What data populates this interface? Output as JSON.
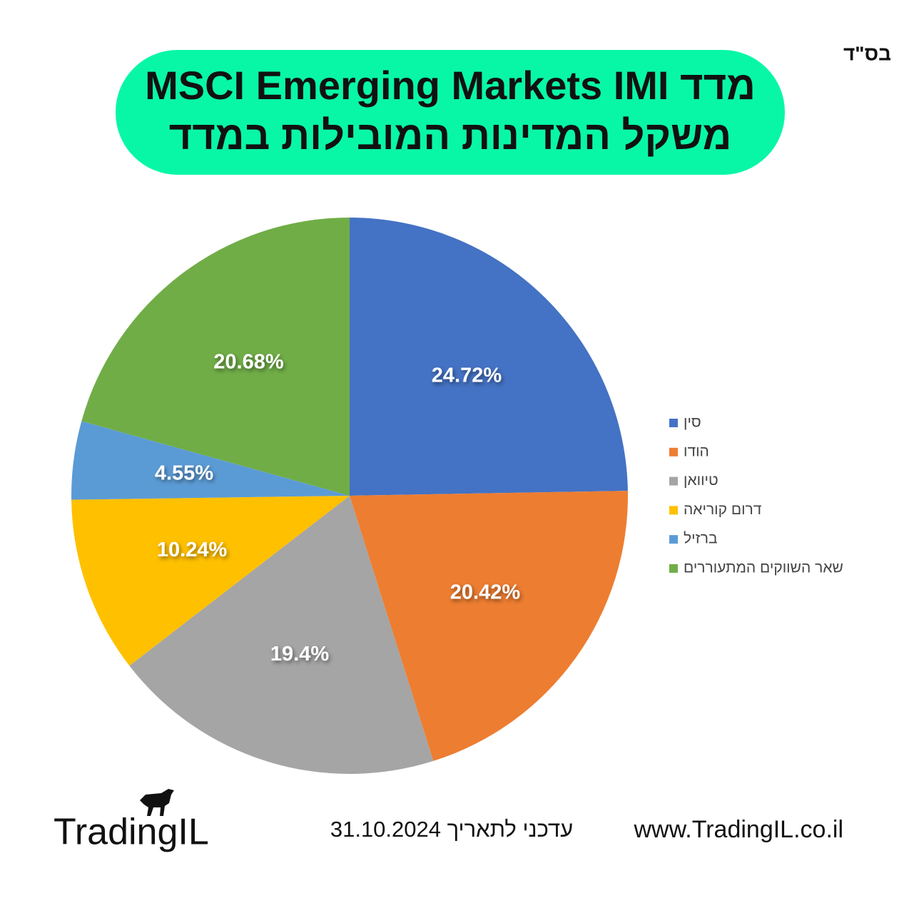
{
  "header": {
    "blessing": "בס\"ד"
  },
  "chart_data": {
    "type": "pie",
    "title": "מדד MSCI Emerging Markets IMI",
    "subtitle": "משקל המדינות המובילות במדד",
    "categories": [
      "סין",
      "הודו",
      "טיוואן",
      "דרום קוריאה",
      "ברזיל",
      "שאר השווקים המתעוררים"
    ],
    "values": [
      24.72,
      20.42,
      19.4,
      10.24,
      4.55,
      20.68
    ],
    "value_labels": [
      "24.72%",
      "20.42%",
      "19.4%",
      "10.24%",
      "4.55%",
      "20.68%"
    ],
    "colors": [
      "#4472c4",
      "#ed7d31",
      "#a5a5a5",
      "#ffc000",
      "#5b9bd5",
      "#70ad47"
    ],
    "legend": "right"
  },
  "footer": {
    "logo": "TradingIL",
    "updated": "עדכני לתאריך 31.10.2024",
    "website": "www.TradingIL.co.il"
  }
}
